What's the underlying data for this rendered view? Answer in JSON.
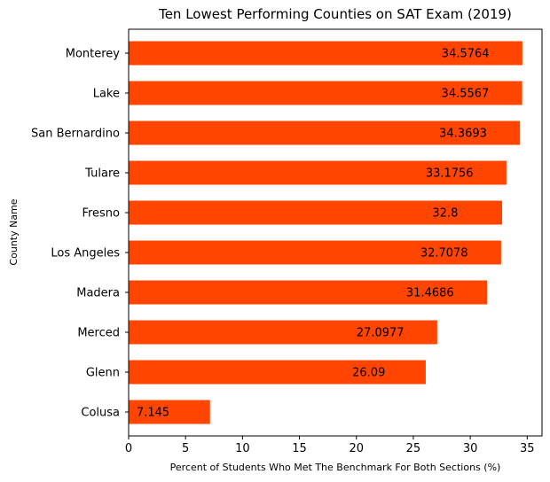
{
  "chart_data": {
    "type": "bar",
    "orientation": "horizontal",
    "title": "Ten Lowest Performing Counties on SAT Exam (2019)",
    "xlabel": "Percent of Students Who Met The Benchmark For Both Sections (%)",
    "ylabel": "County Name",
    "categories": [
      "Colusa",
      "Glenn",
      "Merced",
      "Madera",
      "Los Angeles",
      "Fresno",
      "Tulare",
      "San Bernardino",
      "Lake",
      "Monterey"
    ],
    "values": [
      7.145,
      26.09,
      27.0977,
      31.4686,
      32.7078,
      32.8,
      33.1756,
      34.3693,
      34.5567,
      34.5764
    ],
    "data_labels": [
      "7.145",
      "26.09",
      "27.0977",
      "31.4686",
      "32.7078",
      "32.8",
      "33.1756",
      "34.3693",
      "34.5567",
      "34.5764"
    ],
    "xlim": [
      0,
      36.3
    ],
    "xticks": [
      0,
      5,
      10,
      15,
      20,
      25,
      30,
      35
    ],
    "xtick_labels": [
      "0",
      "5",
      "10",
      "15",
      "20",
      "25",
      "30",
      "35"
    ],
    "grid": false,
    "legend": "none",
    "bar_color": "#ff4500"
  }
}
